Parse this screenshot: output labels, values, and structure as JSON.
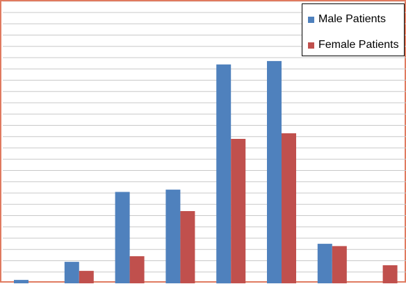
{
  "chart_data": {
    "type": "bar",
    "categories": [
      "",
      "",
      "",
      "",
      "",
      "",
      "",
      ""
    ],
    "series": [
      {
        "name": "Male Patients",
        "color": "#4f81bd",
        "values": [
          0.3,
          1.9,
          8.1,
          8.3,
          19.4,
          19.7,
          3.5,
          0
        ]
      },
      {
        "name": "Female Patients",
        "color": "#c0504d",
        "values": [
          0,
          1.1,
          2.4,
          6.4,
          12.8,
          13.3,
          3.3,
          1.6
        ]
      }
    ],
    "ylim": [
      0,
      25
    ],
    "grid_lines": 25,
    "grid": true,
    "legend_position": "top-right",
    "title": "",
    "xlabel": "",
    "ylabel": ""
  }
}
